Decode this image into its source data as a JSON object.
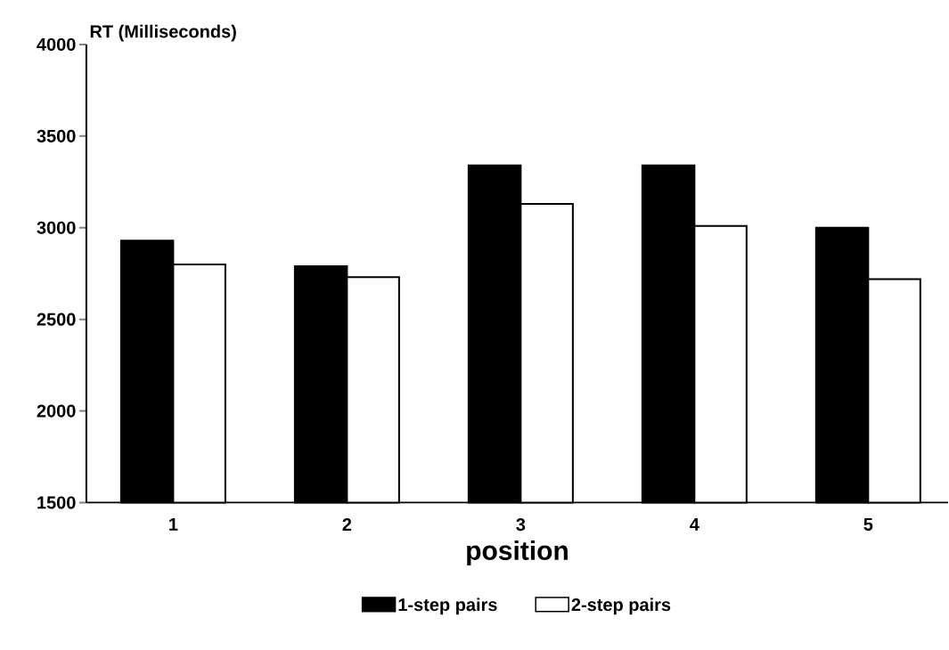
{
  "chart_data": {
    "type": "bar",
    "ylabel": "RT (Milliseconds)",
    "xlabel": "position",
    "categories": [
      "1",
      "2",
      "3",
      "4",
      "5"
    ],
    "series": [
      {
        "name": "1-step pairs",
        "color": "#000000",
        "values": [
          2930,
          2790,
          3340,
          3340,
          3000
        ]
      },
      {
        "name": "2-step pairs",
        "color": "#ffffff",
        "values": [
          2800,
          2730,
          3130,
          3010,
          2720
        ]
      }
    ],
    "ylim": [
      1500,
      4000
    ],
    "yticks": [
      1500,
      2000,
      2500,
      3000,
      3500,
      4000
    ],
    "grid": false,
    "legend": "bottom"
  }
}
